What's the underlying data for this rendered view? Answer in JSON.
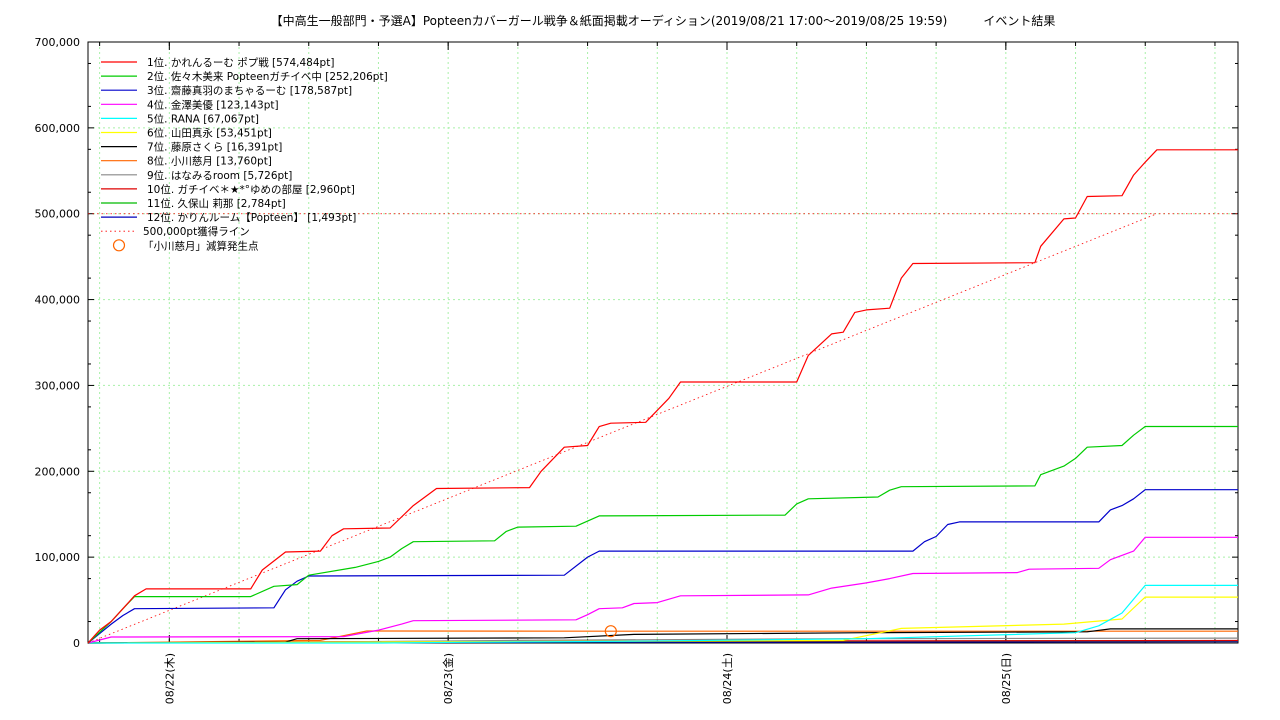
{
  "chart_data": {
    "type": "line",
    "title": "【中高生一般部門・予選A】Popteenカバーガール戦争＆紙面掲載オーディション(2019/08/21 17:00～2019/08/25 19:59)　　　イベント結果",
    "xlabel": "",
    "ylabel": "",
    "x_range": [
      "2019-08-21 17:00",
      "2019-08-25 19:59"
    ],
    "ylim": [
      0,
      700000
    ],
    "yticks": [
      "0",
      "100,000",
      "200,000",
      "300,000",
      "400,000",
      "500,000",
      "600,000",
      "700,000"
    ],
    "xticks": [
      {
        "t": "2019-08-22 00:00",
        "label": "08/22(木)"
      },
      {
        "t": "2019-08-23 00:00",
        "label": "08/23(金)"
      },
      {
        "t": "2019-08-24 00:00",
        "label": "08/24(土)"
      },
      {
        "t": "2019-08-25 00:00",
        "label": "08/25(日)"
      }
    ],
    "grid": true,
    "legend_position": "top-left",
    "series": [
      {
        "name": "1位. かれんるーむ ポプ戦 [574,484pt]",
        "color": "#ff0000",
        "points": [
          [
            "2019-08-21 17:00",
            0
          ],
          [
            "2019-08-21 18:00",
            15000
          ],
          [
            "2019-08-21 19:00",
            25000
          ],
          [
            "2019-08-21 20:00",
            40000
          ],
          [
            "2019-08-21 21:00",
            55000
          ],
          [
            "2019-08-21 22:00",
            63000
          ],
          [
            "2019-08-22 07:00",
            63000
          ],
          [
            "2019-08-22 08:00",
            85000
          ],
          [
            "2019-08-22 10:00",
            106000
          ],
          [
            "2019-08-22 13:00",
            107000
          ],
          [
            "2019-08-22 14:00",
            125000
          ],
          [
            "2019-08-22 15:00",
            133000
          ],
          [
            "2019-08-22 19:00",
            134000
          ],
          [
            "2019-08-22 21:00",
            160000
          ],
          [
            "2019-08-22 23:00",
            180000
          ],
          [
            "2019-08-23 07:00",
            181000
          ],
          [
            "2019-08-23 08:00",
            200000
          ],
          [
            "2019-08-23 10:00",
            228000
          ],
          [
            "2019-08-23 12:00",
            230000
          ],
          [
            "2019-08-23 13:00",
            252000
          ],
          [
            "2019-08-23 14:00",
            256000
          ],
          [
            "2019-08-23 17:00",
            257000
          ],
          [
            "2019-08-23 19:00",
            285000
          ],
          [
            "2019-08-23 20:00",
            304000
          ],
          [
            "2019-08-24 06:00",
            304000
          ],
          [
            "2019-08-24 07:00",
            335000
          ],
          [
            "2019-08-24 09:00",
            360000
          ],
          [
            "2019-08-24 10:00",
            362000
          ],
          [
            "2019-08-24 11:00",
            385000
          ],
          [
            "2019-08-24 12:00",
            388000
          ],
          [
            "2019-08-24 14:00",
            390000
          ],
          [
            "2019-08-24 15:00",
            425000
          ],
          [
            "2019-08-24 16:00",
            442000
          ],
          [
            "2019-08-25 02:30",
            443000
          ],
          [
            "2019-08-25 03:00",
            462000
          ],
          [
            "2019-08-25 05:00",
            494000
          ],
          [
            "2019-08-25 06:00",
            495000
          ],
          [
            "2019-08-25 07:00",
            520000
          ],
          [
            "2019-08-25 10:00",
            521000
          ],
          [
            "2019-08-25 11:00",
            545000
          ],
          [
            "2019-08-25 12:00",
            560000
          ],
          [
            "2019-08-25 13:00",
            574484
          ],
          [
            "2019-08-25 19:59",
            574484
          ]
        ]
      },
      {
        "name": "2位. 佐々木美来 Popteenガチイベ中 [252,206pt]",
        "color": "#00cc00",
        "points": [
          [
            "2019-08-21 17:00",
            0
          ],
          [
            "2019-08-21 19:00",
            25000
          ],
          [
            "2019-08-21 20:00",
            40000
          ],
          [
            "2019-08-21 21:00",
            54000
          ],
          [
            "2019-08-22 07:00",
            54000
          ],
          [
            "2019-08-22 09:00",
            66000
          ],
          [
            "2019-08-22 11:00",
            68000
          ],
          [
            "2019-08-22 12:00",
            79000
          ],
          [
            "2019-08-22 16:00",
            88000
          ],
          [
            "2019-08-22 18:00",
            95000
          ],
          [
            "2019-08-22 19:00",
            100000
          ],
          [
            "2019-08-22 20:00",
            110000
          ],
          [
            "2019-08-22 21:00",
            118000
          ],
          [
            "2019-08-23 04:00",
            119000
          ],
          [
            "2019-08-23 05:00",
            130000
          ],
          [
            "2019-08-23 06:00",
            135000
          ],
          [
            "2019-08-23 11:00",
            136000
          ],
          [
            "2019-08-23 13:00",
            148000
          ],
          [
            "2019-08-24 05:00",
            149000
          ],
          [
            "2019-08-24 06:00",
            162000
          ],
          [
            "2019-08-24 07:00",
            168000
          ],
          [
            "2019-08-24 13:00",
            170000
          ],
          [
            "2019-08-24 14:00",
            178000
          ],
          [
            "2019-08-24 15:00",
            182000
          ],
          [
            "2019-08-25 02:30",
            183000
          ],
          [
            "2019-08-25 03:00",
            196000
          ],
          [
            "2019-08-25 05:00",
            206000
          ],
          [
            "2019-08-25 06:00",
            215000
          ],
          [
            "2019-08-25 07:00",
            228000
          ],
          [
            "2019-08-25 10:00",
            230000
          ],
          [
            "2019-08-25 11:00",
            242000
          ],
          [
            "2019-08-25 12:00",
            252206
          ],
          [
            "2019-08-25 19:59",
            252206
          ]
        ]
      },
      {
        "name": "3位. 齋藤真羽のまちゃるーむ [178,587pt]",
        "color": "#0000cc",
        "points": [
          [
            "2019-08-21 17:00",
            0
          ],
          [
            "2019-08-21 19:00",
            22000
          ],
          [
            "2019-08-21 20:00",
            32000
          ],
          [
            "2019-08-21 21:00",
            40000
          ],
          [
            "2019-08-22 09:00",
            41000
          ],
          [
            "2019-08-22 10:00",
            62000
          ],
          [
            "2019-08-22 11:00",
            72000
          ],
          [
            "2019-08-22 12:00",
            78000
          ],
          [
            "2019-08-23 10:00",
            79000
          ],
          [
            "2019-08-23 12:00",
            100000
          ],
          [
            "2019-08-23 13:00",
            107000
          ],
          [
            "2019-08-24 16:00",
            107000
          ],
          [
            "2019-08-24 17:00",
            118000
          ],
          [
            "2019-08-24 18:00",
            124000
          ],
          [
            "2019-08-24 19:00",
            138000
          ],
          [
            "2019-08-24 20:00",
            141000
          ],
          [
            "2019-08-25 08:00",
            141000
          ],
          [
            "2019-08-25 09:00",
            155000
          ],
          [
            "2019-08-25 10:00",
            160000
          ],
          [
            "2019-08-25 11:00",
            168000
          ],
          [
            "2019-08-25 12:00",
            178587
          ],
          [
            "2019-08-25 19:59",
            178587
          ]
        ]
      },
      {
        "name": "4位. 金澤美優 [123,143pt]",
        "color": "#ff00ff",
        "points": [
          [
            "2019-08-21 17:00",
            0
          ],
          [
            "2019-08-21 19:00",
            7000
          ],
          [
            "2019-08-22 15:00",
            7500
          ],
          [
            "2019-08-22 18:00",
            15000
          ],
          [
            "2019-08-22 20:00",
            22000
          ],
          [
            "2019-08-22 21:00",
            26000
          ],
          [
            "2019-08-23 11:00",
            27000
          ],
          [
            "2019-08-23 12:00",
            33000
          ],
          [
            "2019-08-23 13:00",
            40000
          ],
          [
            "2019-08-23 15:00",
            41000
          ],
          [
            "2019-08-23 16:00",
            46000
          ],
          [
            "2019-08-23 18:00",
            47000
          ],
          [
            "2019-08-23 20:00",
            55000
          ],
          [
            "2019-08-24 07:00",
            56000
          ],
          [
            "2019-08-24 09:00",
            64000
          ],
          [
            "2019-08-24 12:00",
            70000
          ],
          [
            "2019-08-24 14:00",
            75000
          ],
          [
            "2019-08-24 16:00",
            81000
          ],
          [
            "2019-08-25 01:00",
            82000
          ],
          [
            "2019-08-25 02:00",
            86000
          ],
          [
            "2019-08-25 08:00",
            87000
          ],
          [
            "2019-08-25 09:00",
            97000
          ],
          [
            "2019-08-25 11:00",
            107000
          ],
          [
            "2019-08-25 12:00",
            123143
          ],
          [
            "2019-08-25 19:59",
            123143
          ]
        ]
      },
      {
        "name": "5位. RANA [67,067pt]",
        "color": "#00ffff",
        "points": [
          [
            "2019-08-21 17:00",
            0
          ],
          [
            "2019-08-22 18:00",
            0
          ],
          [
            "2019-08-23 01:00",
            800
          ],
          [
            "2019-08-23 15:00",
            2000
          ],
          [
            "2019-08-24 12:00",
            5000
          ],
          [
            "2019-08-25 06:00",
            12000
          ],
          [
            "2019-08-25 08:00",
            20000
          ],
          [
            "2019-08-25 10:00",
            35000
          ],
          [
            "2019-08-25 12:00",
            67067
          ],
          [
            "2019-08-25 19:59",
            67067
          ]
        ]
      },
      {
        "name": "6位. 山田真永 [53,451pt]",
        "color": "#ffff00",
        "points": [
          [
            "2019-08-21 17:00",
            0
          ],
          [
            "2019-08-24 10:00",
            3000
          ],
          [
            "2019-08-24 15:00",
            17000
          ],
          [
            "2019-08-25 05:00",
            22000
          ],
          [
            "2019-08-25 10:00",
            28000
          ],
          [
            "2019-08-25 12:00",
            53451
          ],
          [
            "2019-08-25 19:59",
            53451
          ]
        ]
      },
      {
        "name": "7位. 藤原さくら [16,391pt]",
        "color": "#000000",
        "points": [
          [
            "2019-08-21 17:00",
            0
          ],
          [
            "2019-08-22 10:00",
            1000
          ],
          [
            "2019-08-22 11:00",
            5000
          ],
          [
            "2019-08-23 10:00",
            6000
          ],
          [
            "2019-08-23 16:00",
            10000
          ],
          [
            "2019-08-24 12:00",
            12000
          ],
          [
            "2019-08-25 07:00",
            13000
          ],
          [
            "2019-08-25 09:00",
            16391
          ],
          [
            "2019-08-25 19:59",
            16391
          ]
        ]
      },
      {
        "name": "8位. 小川慈月 [13,760pt]",
        "color": "#ff6600",
        "points": [
          [
            "2019-08-21 17:00",
            0
          ],
          [
            "2019-08-22 13:00",
            3000
          ],
          [
            "2019-08-22 17:00",
            14000
          ],
          [
            "2019-08-23 14:00",
            13760
          ],
          [
            "2019-08-25 19:59",
            13760
          ]
        ]
      },
      {
        "name": "9位. はなみるroom [5,726pt]",
        "color": "#888888",
        "points": [
          [
            "2019-08-21 17:00",
            0
          ],
          [
            "2019-08-22 12:00",
            1000
          ],
          [
            "2019-08-23 06:00",
            3000
          ],
          [
            "2019-08-24 10:00",
            5000
          ],
          [
            "2019-08-25 19:59",
            5726
          ]
        ]
      },
      {
        "name": "10位. ガチイベ＊★*°ゆめの部屋 [2,960pt]",
        "color": "#dd0000",
        "points": [
          [
            "2019-08-21 17:00",
            0
          ],
          [
            "2019-08-22 15:00",
            1500
          ],
          [
            "2019-08-24 09:00",
            2500
          ],
          [
            "2019-08-25 19:59",
            2960
          ]
        ]
      },
      {
        "name": "11位. 久保山 莉那 [2,784pt]",
        "color": "#00bb00",
        "points": [
          [
            "2019-08-21 17:00",
            0
          ],
          [
            "2019-08-22 20:00",
            1000
          ],
          [
            "2019-08-24 10:00",
            2200
          ],
          [
            "2019-08-25 19:59",
            2784
          ]
        ]
      },
      {
        "name": "12位. かりんルーム【Popteen】 [1,493pt]",
        "color": "#0000bb",
        "points": [
          [
            "2019-08-21 17:00",
            0
          ],
          [
            "2019-08-23 10:00",
            800
          ],
          [
            "2019-08-24 15:00",
            1200
          ],
          [
            "2019-08-25 19:59",
            1493
          ]
        ]
      }
    ],
    "target_line": {
      "name": "500,000pt獲得ライン",
      "color": "#ff0000",
      "points": [
        [
          "2019-08-21 17:00",
          0
        ],
        [
          "2019-08-25 13:00",
          500000
        ]
      ],
      "horizontal_value": 500000
    },
    "marker": {
      "name": "「小川慈月」減算発生点",
      "color": "#ff6600",
      "t": "2019-08-23 14:00",
      "value": 13760
    }
  }
}
